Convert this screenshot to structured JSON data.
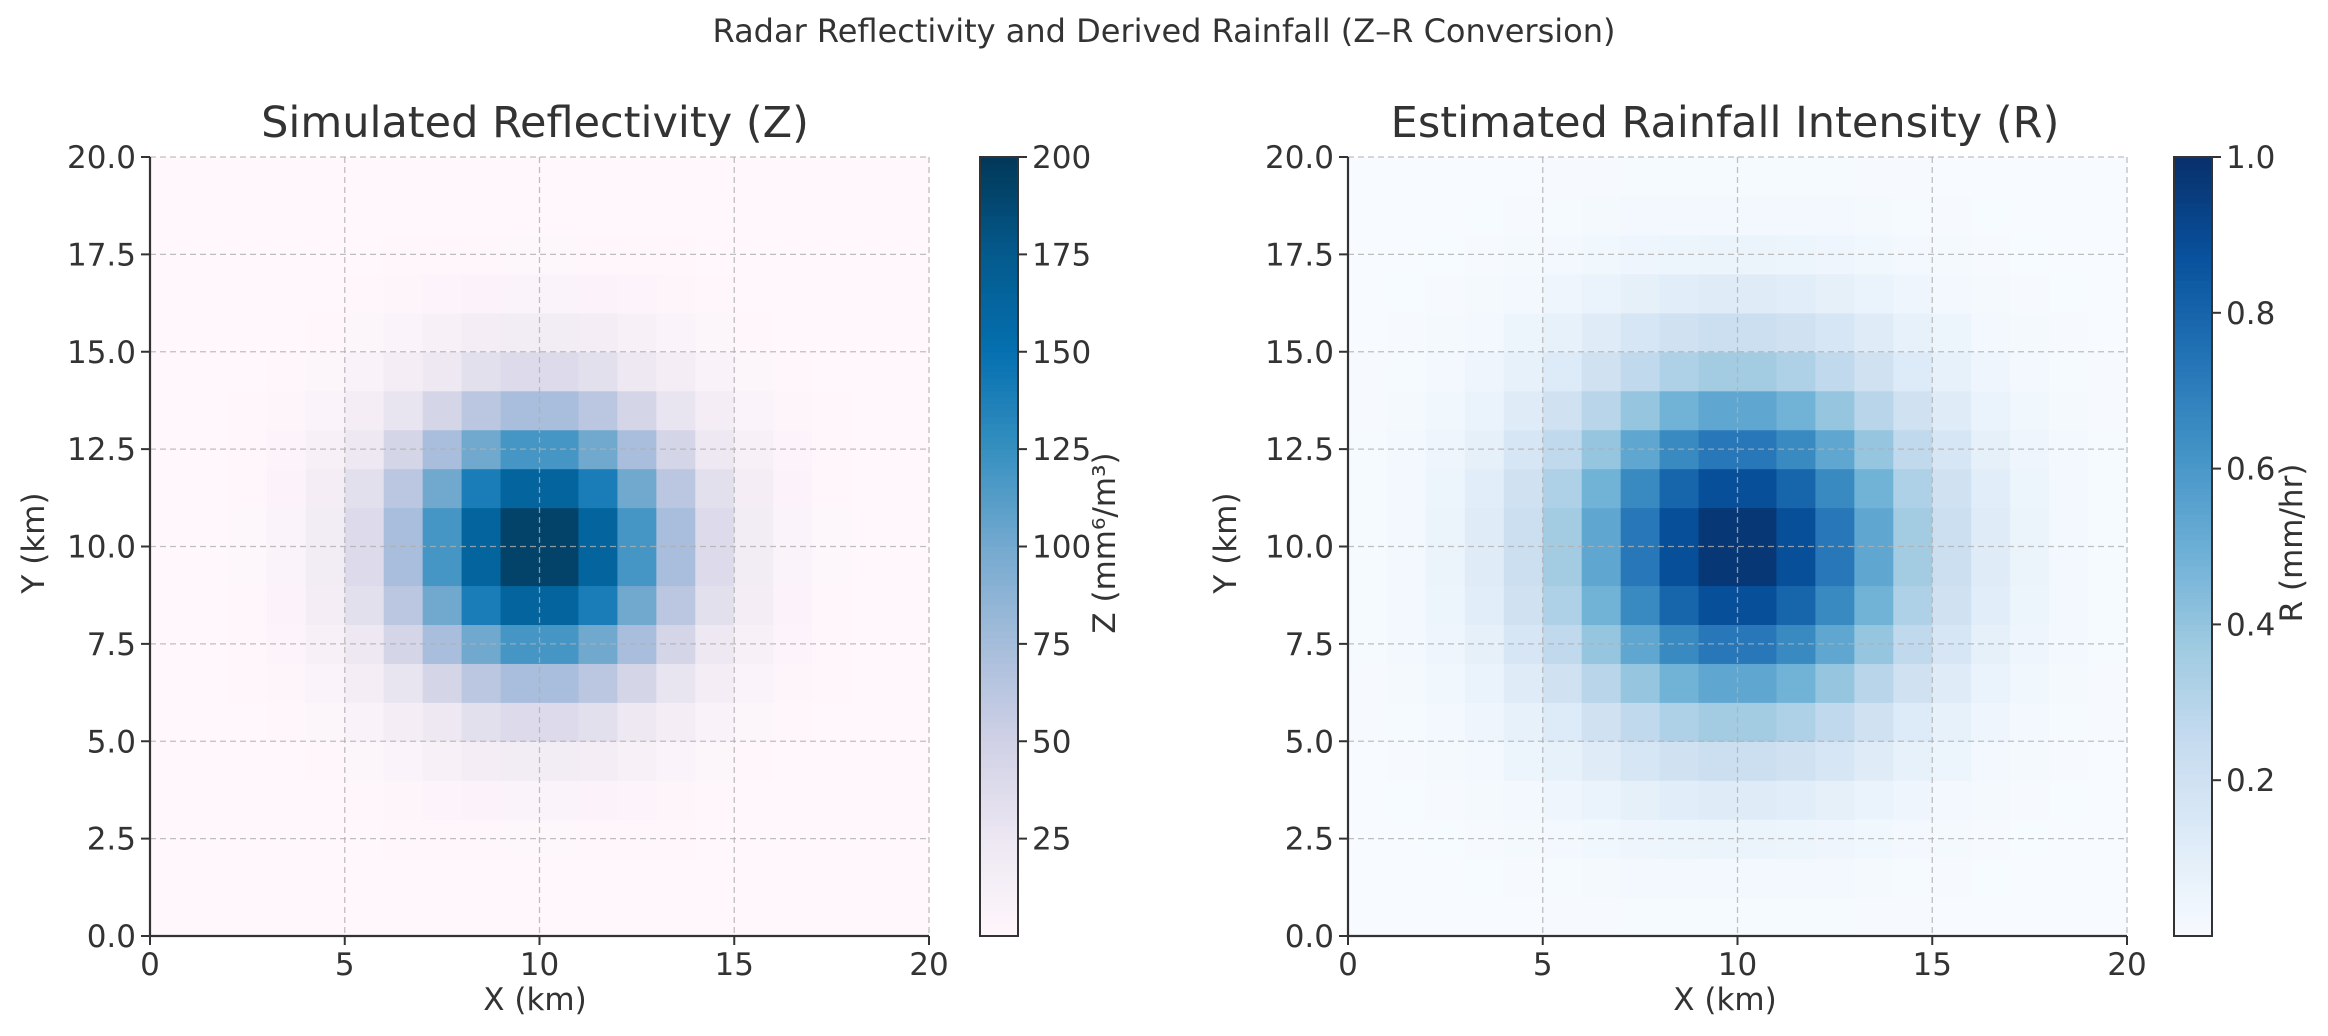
{
  "figure": {
    "suptitle": "Radar Reflectivity and Derived Rainfall (Z–R Conversion)"
  },
  "chart_data": [
    {
      "type": "heatmap",
      "title": "Simulated Reflectivity (Z)",
      "xlabel": "X (km)",
      "ylabel": "Y (km)",
      "xlim": [
        0,
        20
      ],
      "ylim": [
        0,
        20
      ],
      "xticks": [
        "0",
        "5",
        "10",
        "15",
        "20"
      ],
      "yticks": [
        "0.0",
        "2.5",
        "5.0",
        "7.5",
        "10.0",
        "12.5",
        "15.0",
        "17.5",
        "20.0"
      ],
      "grid": true,
      "grid_resolution": [
        20,
        20
      ],
      "field": "gaussian peak at (10, 10), sigma ≈ 2.5 km",
      "peak_value": 200,
      "center": [
        10,
        10
      ],
      "colormap": "PuBu",
      "colorbar": {
        "label": "Z (mm⁶/m³)",
        "range": [
          0,
          200
        ],
        "ticks": [
          "25",
          "50",
          "75",
          "100",
          "125",
          "150",
          "175",
          "200"
        ]
      }
    },
    {
      "type": "heatmap",
      "title": "Estimated Rainfall Intensity (R)",
      "xlabel": "X (km)",
      "ylabel": "Y (km)",
      "xlim": [
        0,
        20
      ],
      "ylim": [
        0,
        20
      ],
      "xticks": [
        "0",
        "5",
        "10",
        "15",
        "20"
      ],
      "yticks": [
        "0.0",
        "2.5",
        "5.0",
        "7.5",
        "10.0",
        "12.5",
        "15.0",
        "17.5",
        "20.0"
      ],
      "grid": true,
      "grid_resolution": [
        20,
        20
      ],
      "field": "R = (Z/200)^(1/1.6), peak at (10, 10)",
      "peak_value": 1.0,
      "center": [
        10,
        10
      ],
      "colormap": "Blues",
      "colorbar": {
        "label": "R (mm/hr)",
        "range": [
          0,
          1
        ],
        "ticks": [
          "0.2",
          "0.4",
          "0.6",
          "0.8",
          "1.0"
        ]
      }
    }
  ]
}
